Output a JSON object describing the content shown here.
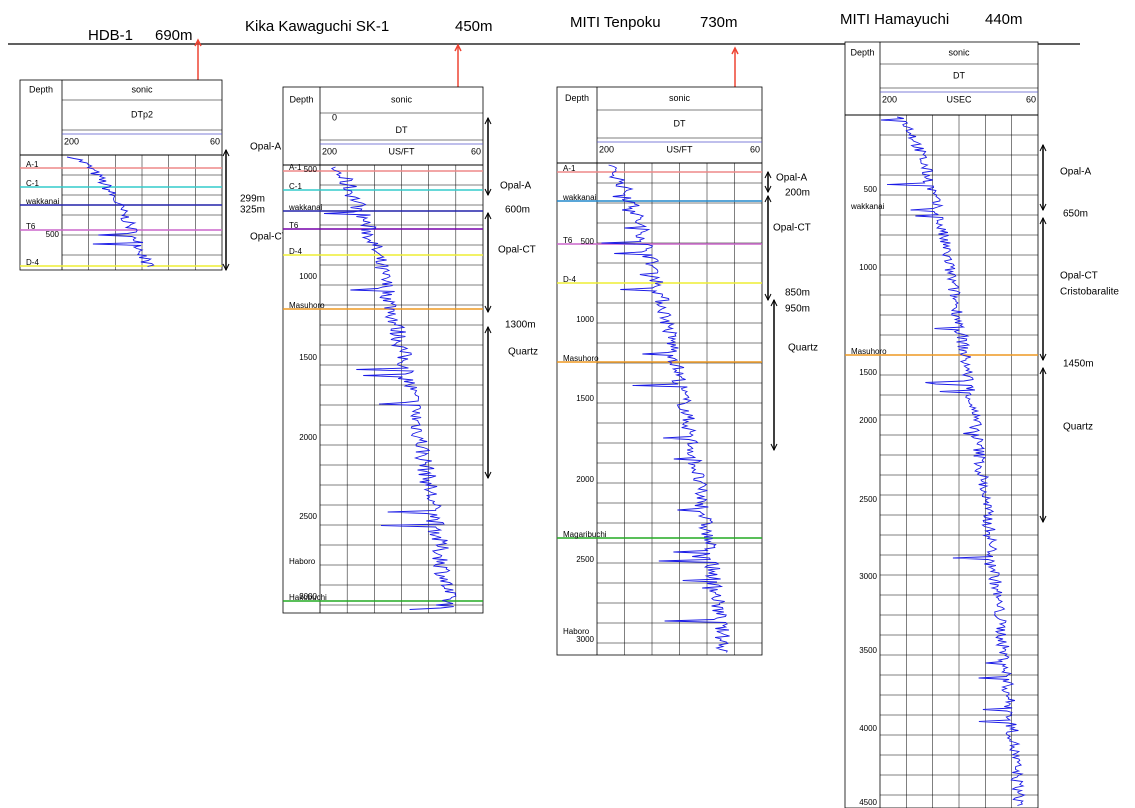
{
  "wells": [
    {
      "name": "HDB-1",
      "depth": "690m",
      "header": {
        "depth": "Depth",
        "log": "sonic",
        "curve": "DTp2",
        "scale_left": "200",
        "scale_right": "60"
      },
      "markers": [
        "A-1",
        "C-1",
        "wakkanai",
        "T6",
        "D-4"
      ],
      "depth_labels": [
        "500"
      ],
      "annotations": [
        "Opal-A",
        "299m",
        "325m",
        "Opal-CT"
      ]
    },
    {
      "name": "Kika Kawaguchi SK-1",
      "depth": "450m",
      "header": {
        "depth": "Depth",
        "log": "sonic",
        "zero": "0",
        "curve": "DT",
        "scale_left": "200",
        "unit": "US/FT",
        "scale_right": "60"
      },
      "markers": [
        "A-1",
        "C-1",
        "wakkanai",
        "T6",
        "D-4",
        "Masuhoro",
        "Haboro",
        "Hakobuchi"
      ],
      "depth_labels": [
        "500",
        "1000",
        "1500",
        "2000",
        "2500",
        "3000"
      ],
      "annotations": [
        "Opal-A",
        "600m",
        "Opal-CT",
        "1300m",
        "Quartz"
      ]
    },
    {
      "name": "MITI Tenpoku",
      "depth": "730m",
      "header": {
        "depth": "Depth",
        "log": "sonic",
        "curve": "DT",
        "scale_left": "200",
        "unit": "US/FT",
        "scale_right": "60"
      },
      "markers": [
        "A-1",
        "wakkanai",
        "T6",
        "D-4",
        "Masuhoro",
        "Magaribuchi",
        "Haboro"
      ],
      "depth_labels": [
        "500",
        "1000",
        "1500",
        "2000",
        "2500",
        "3000"
      ],
      "annotations": [
        "Opal-A",
        "200m",
        "Opal-CT",
        "850m",
        "950m",
        "Quartz"
      ]
    },
    {
      "name": "MITI Hamayuchi",
      "depth": "440m",
      "header": {
        "depth": "Depth",
        "log": "sonic",
        "curve": "DT",
        "scale_left": "200",
        "unit": "USEC",
        "scale_right": "60"
      },
      "markers": [
        "wakkanai",
        "Masuhoro"
      ],
      "depth_labels": [
        "500",
        "1000",
        "1500",
        "2000",
        "2500",
        "3000",
        "3500",
        "4000",
        "4500"
      ],
      "annotations": [
        "Opal-A",
        "650m",
        "Opal-CT",
        "Cristobaralite",
        "1450m",
        "Quartz"
      ]
    }
  ]
}
